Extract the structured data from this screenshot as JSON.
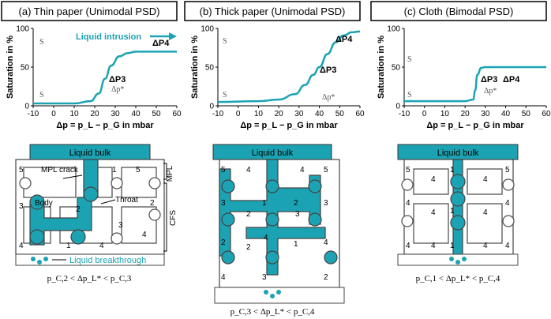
{
  "panels": [
    {
      "title": "(a) Thin paper (Unimodal PSD)",
      "annotations": {
        "p3": "ΔP3",
        "p4": "ΔP4",
        "sg": "S",
        "sl": "S",
        "dp": "Δp*",
        "intrusion": "Liquid intrusion"
      },
      "network_labels": {
        "bulk": "Liquid bulk",
        "mpl_crack": "MPL crack",
        "body": "Body",
        "throat": "Throat",
        "mpl": "MPL",
        "cfs": "CFS",
        "breakthrough": "Liquid breakthrough"
      },
      "formula": "p_C,2 < Δp_L* < p_C,3"
    },
    {
      "title": "(b) Thick paper (Unimodal PSD)",
      "annotations": {
        "p3": "ΔP3",
        "p4": "ΔP4",
        "sg": "S",
        "sl": "S",
        "dp": "Δp*"
      },
      "network_labels": {
        "bulk": "Liquid bulk"
      },
      "formula": "p_C,3 < Δp_L* < p_C,4"
    },
    {
      "title": "(c) Cloth (Bimodal PSD)",
      "annotations": {
        "p3": "ΔP3",
        "p4": "ΔP4",
        "sg": "S",
        "sl": "S",
        "dp": "Δp*"
      },
      "network_labels": {
        "bulk": "Liquid bulk"
      },
      "formula": "p_C,1 < Δp_L* < p_C,4"
    }
  ],
  "chart_data": [
    {
      "type": "line",
      "title": "(a) Thin paper (Unimodal PSD)",
      "xlabel": "Δp = p_L − p_G in mbar",
      "ylabel": "Saturation in %",
      "xlim": [
        -10,
        60
      ],
      "ylim": [
        0,
        100
      ],
      "xticks": [
        "-10",
        "0",
        "10",
        "20",
        "30",
        "40",
        "50",
        "60"
      ],
      "yticks": [
        "0",
        "50",
        "100"
      ],
      "series": [
        {
          "x": [
            -10,
            10,
            18,
            22,
            25,
            28,
            32,
            36,
            40,
            60
          ],
          "y": [
            3,
            3,
            6,
            16,
            35,
            52,
            64,
            68,
            70,
            70
          ]
        }
      ]
    },
    {
      "type": "line",
      "title": "(b) Thick paper (Unimodal PSD)",
      "xlabel": "Δp = p_L − p_G in mbar",
      "ylabel": "Saturation in %",
      "xlim": [
        -10,
        60
      ],
      "ylim": [
        0,
        100
      ],
      "xticks": [
        "-10",
        "0",
        "10",
        "20",
        "30",
        "40",
        "50",
        "60"
      ],
      "yticks": [
        "0",
        "50",
        "100"
      ],
      "series": [
        {
          "x": [
            -10,
            10,
            20,
            28,
            33,
            37,
            40,
            44,
            48,
            52,
            56,
            60
          ],
          "y": [
            5,
            6,
            8,
            15,
            27,
            40,
            50,
            67,
            82,
            91,
            95,
            96
          ]
        }
      ]
    },
    {
      "type": "line",
      "title": "(c) Cloth (Bimodal PSD)",
      "xlabel": "Δp = p_L − p_G in mbar",
      "ylabel": "Saturation in %",
      "xlim": [
        -10,
        60
      ],
      "ylim": [
        0,
        100
      ],
      "xticks": [
        "-10",
        "0",
        "10",
        "20",
        "30",
        "40",
        "50",
        "60"
      ],
      "yticks": [
        "0",
        "50",
        "100"
      ],
      "series": [
        {
          "x": [
            -10,
            20,
            24,
            25,
            26,
            28,
            30,
            60
          ],
          "y": [
            6,
            6,
            8,
            20,
            40,
            49,
            50,
            50
          ]
        }
      ]
    }
  ]
}
